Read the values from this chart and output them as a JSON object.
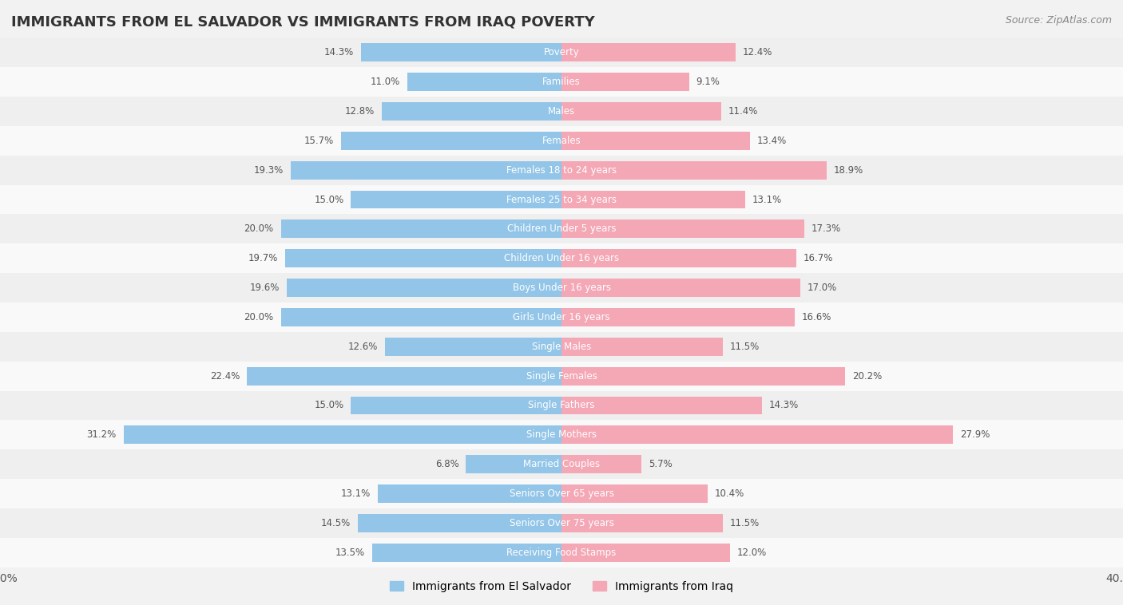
{
  "title": "IMMIGRANTS FROM EL SALVADOR VS IMMIGRANTS FROM IRAQ POVERTY",
  "source": "Source: ZipAtlas.com",
  "categories": [
    "Poverty",
    "Families",
    "Males",
    "Females",
    "Females 18 to 24 years",
    "Females 25 to 34 years",
    "Children Under 5 years",
    "Children Under 16 years",
    "Boys Under 16 years",
    "Girls Under 16 years",
    "Single Males",
    "Single Females",
    "Single Fathers",
    "Single Mothers",
    "Married Couples",
    "Seniors Over 65 years",
    "Seniors Over 75 years",
    "Receiving Food Stamps"
  ],
  "el_salvador": [
    14.3,
    11.0,
    12.8,
    15.7,
    19.3,
    15.0,
    20.0,
    19.7,
    19.6,
    20.0,
    12.6,
    22.4,
    15.0,
    31.2,
    6.8,
    13.1,
    14.5,
    13.5
  ],
  "iraq": [
    12.4,
    9.1,
    11.4,
    13.4,
    18.9,
    13.1,
    17.3,
    16.7,
    17.0,
    16.6,
    11.5,
    20.2,
    14.3,
    27.9,
    5.7,
    10.4,
    11.5,
    12.0
  ],
  "color_el_salvador": "#92C5E8",
  "color_iraq": "#F4A7B5",
  "background_color": "#f2f2f2",
  "row_color_odd": "#f9f9f9",
  "row_color_even": "#efefef",
  "xlim": 40.0,
  "legend_el_salvador": "Immigrants from El Salvador",
  "legend_iraq": "Immigrants from Iraq",
  "title_fontsize": 13,
  "source_fontsize": 9,
  "label_fontsize": 8.5,
  "value_fontsize": 8.5,
  "legend_fontsize": 10
}
